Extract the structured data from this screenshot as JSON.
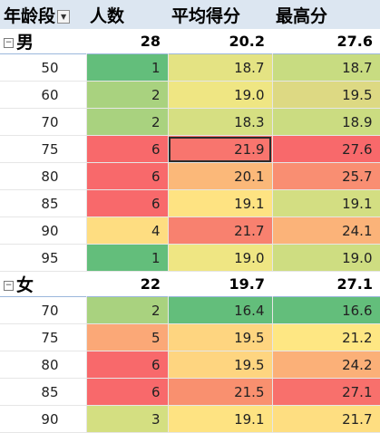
{
  "headers": {
    "age_group": "年龄段",
    "count": "人数",
    "avg_score": "平均得分",
    "max_score": "最高分"
  },
  "groups": [
    {
      "label": "男",
      "count": "28",
      "avg": "20.2",
      "max": "27.6",
      "rows": [
        {
          "age": "50",
          "count": "1",
          "avg": "18.7",
          "max": "18.7",
          "cc": "#63be7b",
          "ca": "#e4e383",
          "cm": "#c8dc81"
        },
        {
          "age": "60",
          "count": "2",
          "avg": "19.0",
          "max": "19.5",
          "cc": "#a9d27f",
          "ca": "#efe683",
          "cm": "#ddd983"
        },
        {
          "age": "70",
          "count": "2",
          "avg": "18.3",
          "max": "18.9",
          "cc": "#a9d27f",
          "ca": "#d6df82",
          "cm": "#cbdc81"
        },
        {
          "age": "75",
          "count": "6",
          "avg": "21.9",
          "max": "27.6",
          "cc": "#f8696b",
          "ca": "#f8756e",
          "cm": "#f8696b"
        },
        {
          "age": "80",
          "count": "6",
          "avg": "20.1",
          "max": "25.7",
          "cc": "#f8696b",
          "ca": "#fbb879",
          "cm": "#f98e72"
        },
        {
          "age": "85",
          "count": "6",
          "avg": "19.1",
          "max": "19.1",
          "cc": "#f8696b",
          "ca": "#fee382",
          "cm": "#d3de82"
        },
        {
          "age": "90",
          "count": "4",
          "avg": "21.7",
          "max": "24.1",
          "cc": "#fedd81",
          "ca": "#f8816f",
          "cm": "#fbb379"
        },
        {
          "age": "95",
          "count": "1",
          "avg": "19.0",
          "max": "19.0",
          "cc": "#63be7b",
          "ca": "#efe683",
          "cm": "#ced d81"
        }
      ]
    },
    {
      "label": "女",
      "count": "22",
      "avg": "19.7",
      "max": "27.1",
      "rows": [
        {
          "age": "70",
          "count": "2",
          "avg": "16.4",
          "max": "16.6",
          "cc": "#a9d27f",
          "ca": "#63be7b",
          "cm": "#63be7b"
        },
        {
          "age": "75",
          "count": "5",
          "avg": "19.5",
          "max": "21.2",
          "cc": "#fba877",
          "ca": "#fed580",
          "cm": "#fee783"
        },
        {
          "age": "80",
          "count": "6",
          "avg": "19.5",
          "max": "24.2",
          "cc": "#f8696b",
          "ca": "#fed580",
          "cm": "#fbb078"
        },
        {
          "age": "85",
          "count": "6",
          "avg": "21.5",
          "max": "27.1",
          "cc": "#f8696b",
          "ca": "#f9906f",
          "cm": "#f8706c"
        },
        {
          "age": "90",
          "count": "3",
          "avg": "19.1",
          "max": "21.7",
          "cc": "#d4df81",
          "ca": "#fee382",
          "cm": "#fede81"
        }
      ]
    }
  ],
  "selected_cell": {
    "group": 0,
    "row": 3,
    "col": "avg"
  },
  "icons": {
    "collapse": "minus-box-icon",
    "filter": "dropdown-filter-icon"
  }
}
